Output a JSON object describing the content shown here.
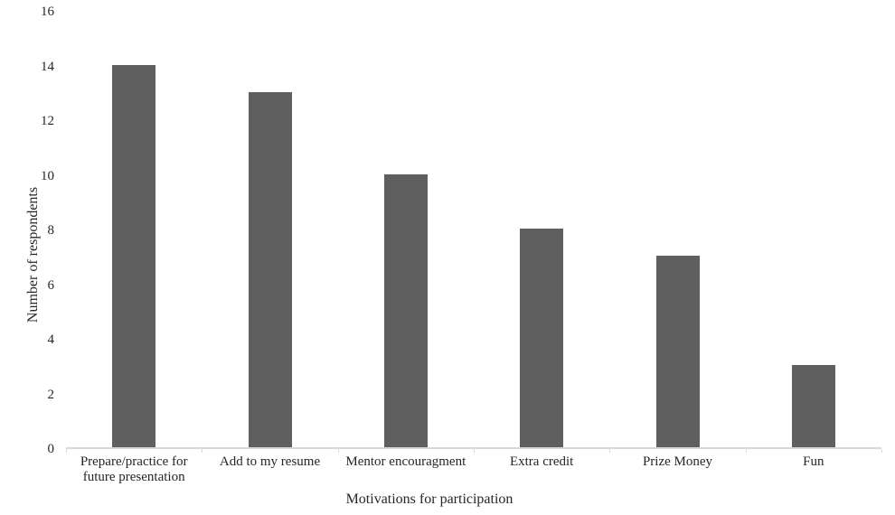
{
  "chart_data": {
    "type": "bar",
    "title": "",
    "categories": [
      "Prepare/practice for future presentation",
      "Add to my resume",
      "Mentor encouragment",
      "Extra credit",
      "Prize Money",
      "Fun"
    ],
    "values": [
      14,
      13,
      10,
      8,
      7,
      3
    ],
    "xlabel": "Motivations for participation",
    "ylabel": "Number of respondents",
    "ylim": [
      0,
      16
    ],
    "yticks": [
      0,
      2,
      4,
      6,
      8,
      10,
      12,
      14,
      16
    ],
    "grid": false,
    "legend": false,
    "bar_color": "#5f5f5f",
    "axis_line_color": "#d9d9d9",
    "text_color": "#262626",
    "background_color": "#ffffff"
  }
}
